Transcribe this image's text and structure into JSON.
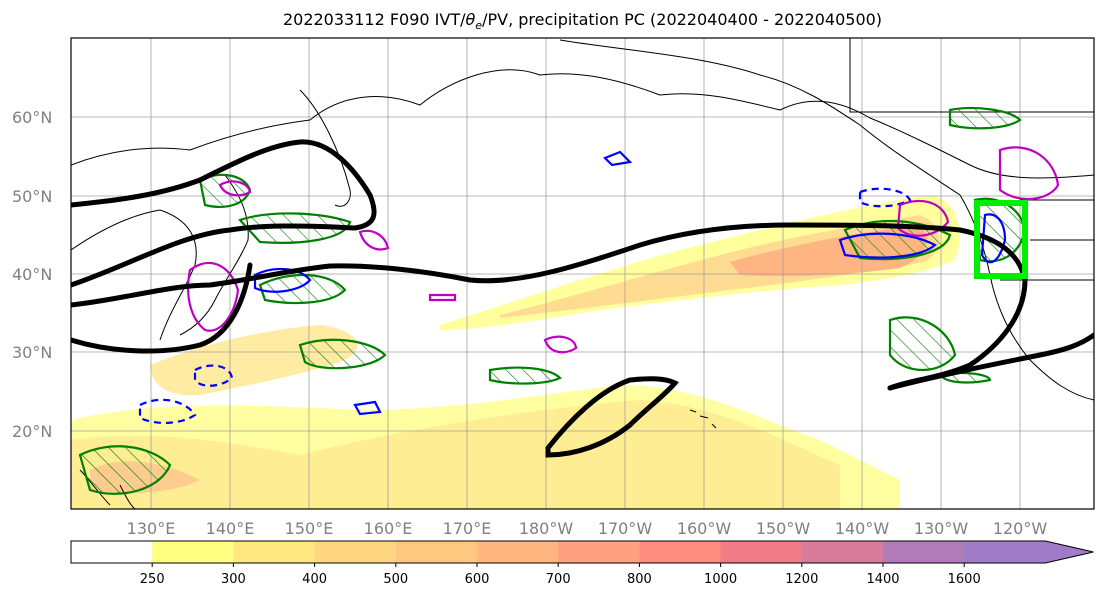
{
  "title": {
    "prefix": "2022033112 F090 IVT/",
    "theta": "θ",
    "theta_sub": "e",
    "suffix": "/PV, precipitation PC (2022040400 - 2022040500)"
  },
  "lat_labels": [
    "60°N",
    "50°N",
    "40°N",
    "30°N",
    "20°N"
  ],
  "lon_labels": [
    "130°E",
    "140°E",
    "150°E",
    "160°E",
    "170°E",
    "180°W",
    "170°W",
    "160°W",
    "150°W",
    "140°W",
    "130°W",
    "120°W"
  ],
  "colorbar": {
    "labels": [
      "250",
      "300",
      "400",
      "500",
      "600",
      "700",
      "800",
      "1000",
      "1200",
      "1400",
      "1600"
    ],
    "colors": [
      "#ffffff",
      "#ffff80",
      "#ffe880",
      "#ffd680",
      "#ffc880",
      "#ffb680",
      "#ffa080",
      "#ff8c80",
      "#f07c88",
      "#d87c9c",
      "#b07cb8",
      "#a07cc8"
    ]
  },
  "colors": {
    "theta_e_contour": "#000000",
    "pv_solid": "#0000ff",
    "precip_pc": "#008000",
    "magenta_contour": "#c000c0",
    "target_box": "#00ee00"
  }
}
